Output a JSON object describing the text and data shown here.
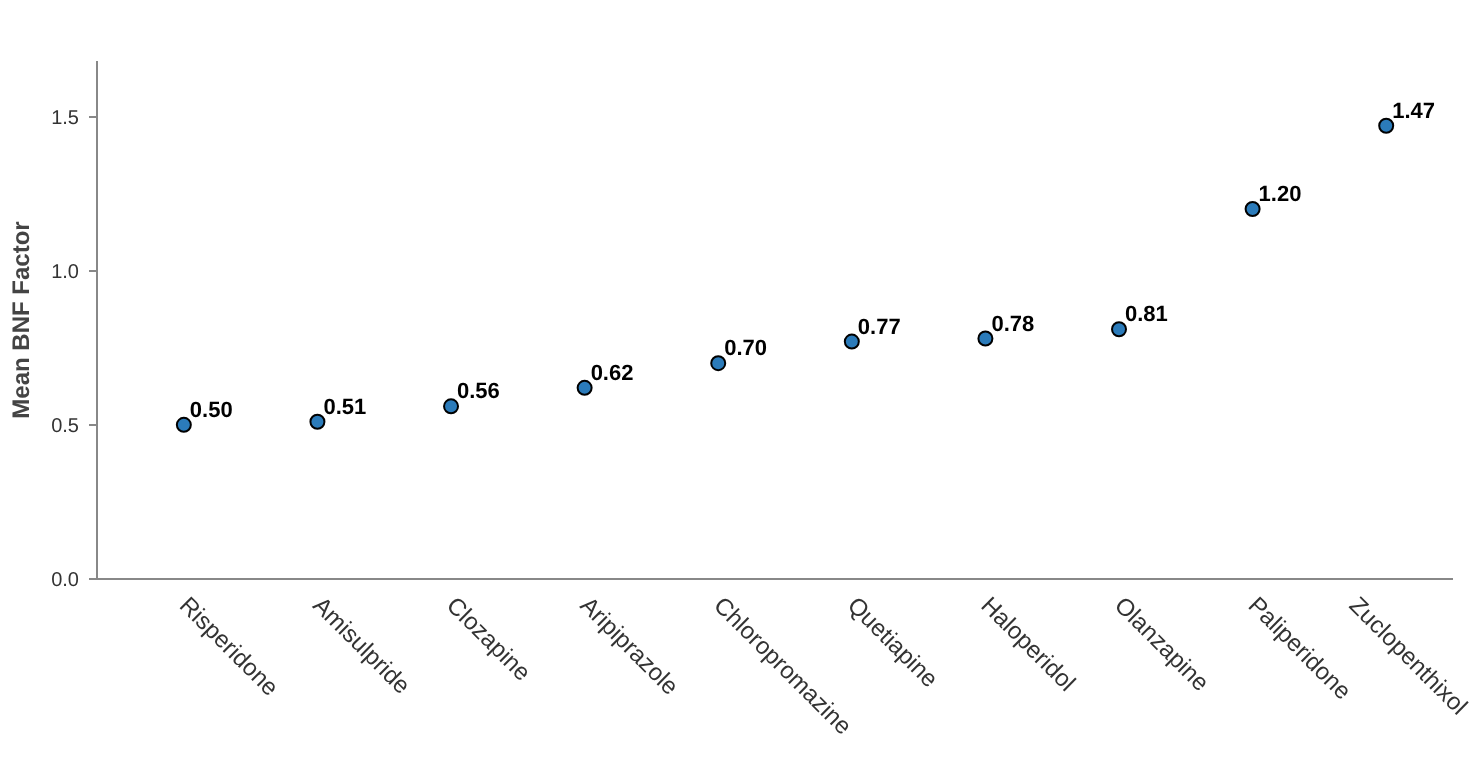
{
  "chart_data": {
    "type": "scatter",
    "ylabel": "Mean BNF Factor",
    "categories": [
      "Risperidone",
      "Amisulpride",
      "Clozapine",
      "Aripiprazole",
      "Chloropromazine",
      "Quetiapine",
      "Haloperidol",
      "Olanzapine",
      "Paliperidone",
      "Zuclopenthixol"
    ],
    "values": [
      0.5,
      0.51,
      0.56,
      0.62,
      0.7,
      0.77,
      0.78,
      0.81,
      1.2,
      1.47
    ],
    "value_labels": [
      "0.50",
      "0.51",
      "0.56",
      "0.62",
      "0.70",
      "0.77",
      "0.78",
      "0.81",
      "1.20",
      "1.47"
    ],
    "color": "#2b7bba",
    "marker": "circle",
    "grid": false,
    "ylim": [
      0,
      1.68
    ],
    "yticks": [
      {
        "value": 0,
        "label": "0.0"
      },
      0.5,
      {
        "value": 1,
        "label": "1.0"
      },
      1.5
    ]
  }
}
